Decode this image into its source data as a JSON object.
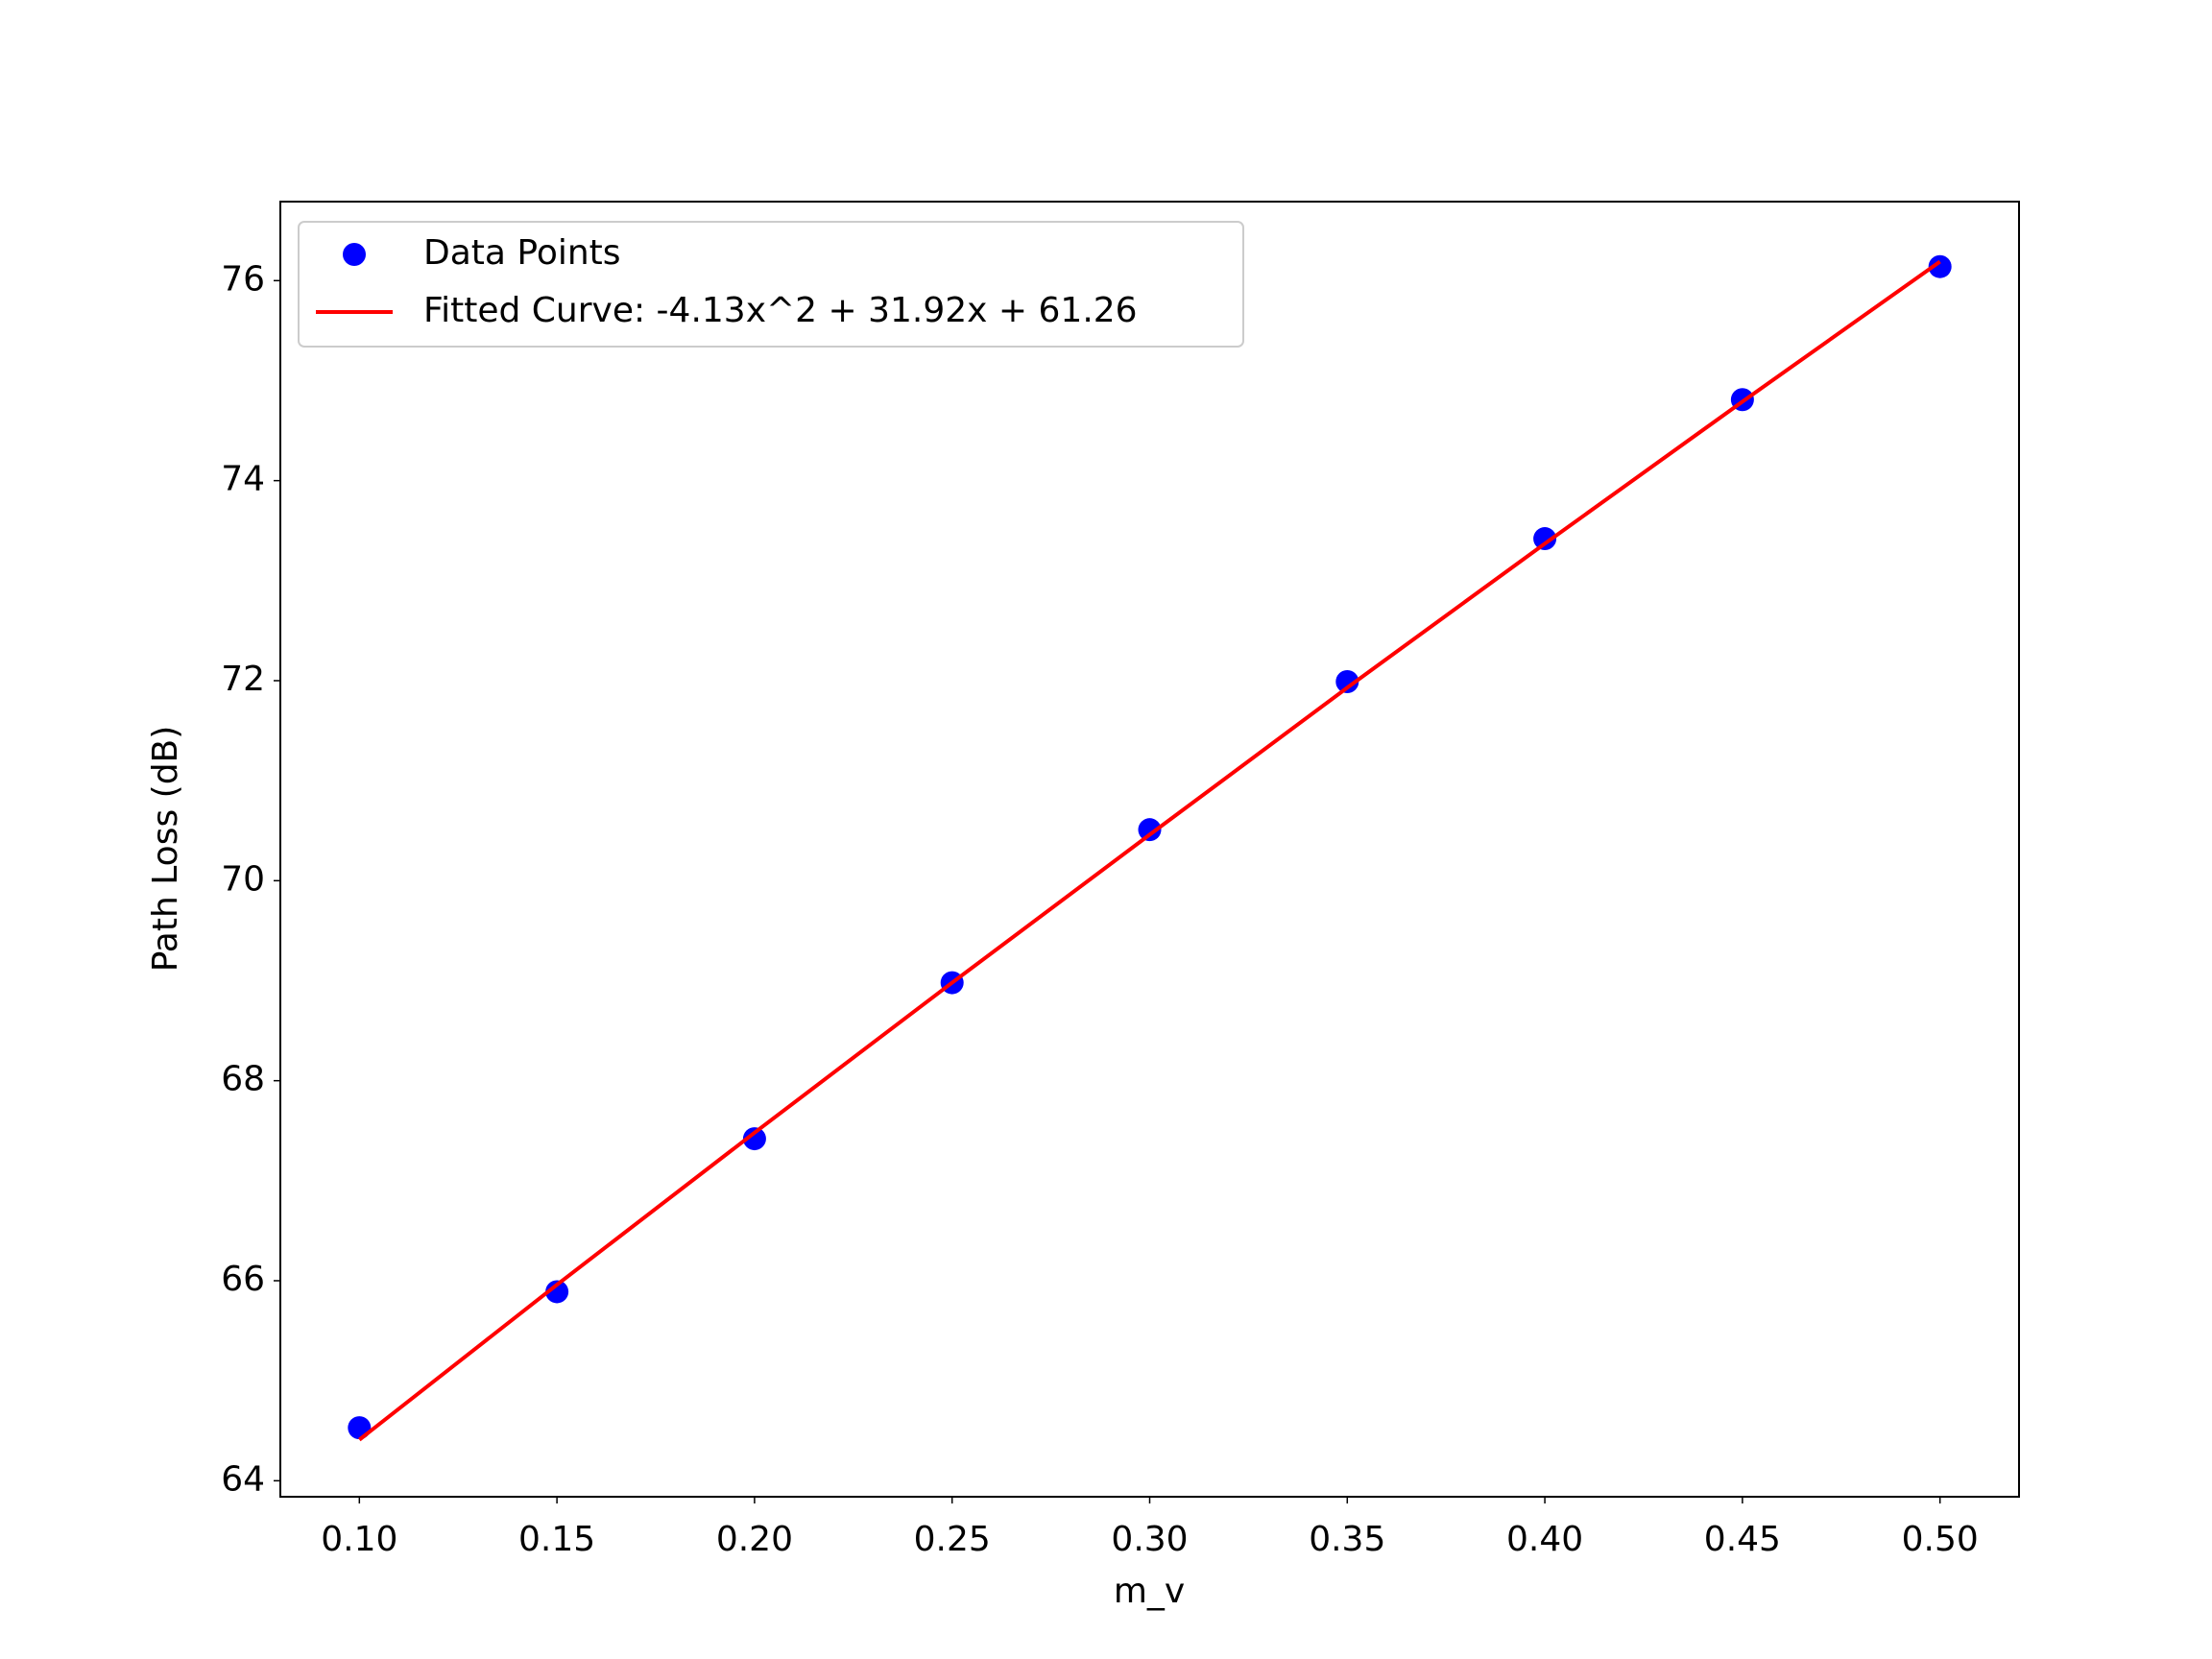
{
  "chart_data": {
    "type": "scatter",
    "x": [
      0.1,
      0.15,
      0.2,
      0.25,
      0.3,
      0.35,
      0.4,
      0.45,
      0.5
    ],
    "series": [
      {
        "name": "Data Points",
        "type": "scatter",
        "color": "#0000ff",
        "values": [
          64.53,
          65.89,
          67.42,
          68.98,
          70.51,
          71.99,
          73.42,
          74.81,
          76.14
        ]
      },
      {
        "name": "Fitted Curve: -4.13x^2 + 31.92x + 61.26",
        "type": "line",
        "color": "#ff0000",
        "values": [
          64.41,
          65.96,
          67.48,
          68.98,
          70.46,
          71.93,
          73.37,
          74.79,
          76.19
        ]
      }
    ],
    "x_label": "m_v",
    "y_label": "Path Loss (dB)",
    "xlim": [
      0.08,
      0.52
    ],
    "ylim": [
      63.84,
      76.79
    ],
    "xticks": [
      {
        "value": 0.1,
        "label": "0.10"
      },
      {
        "value": 0.15,
        "label": "0.15"
      },
      {
        "value": 0.2,
        "label": "0.20"
      },
      {
        "value": 0.25,
        "label": "0.25"
      },
      {
        "value": 0.3,
        "label": "0.30"
      },
      {
        "value": 0.35,
        "label": "0.35"
      },
      {
        "value": 0.4,
        "label": "0.40"
      },
      {
        "value": 0.45,
        "label": "0.45"
      },
      {
        "value": 0.5,
        "label": "0.50"
      }
    ],
    "yticks": [
      64,
      66,
      68,
      70,
      72,
      74,
      76
    ],
    "grid": false,
    "legend": "upper left"
  }
}
